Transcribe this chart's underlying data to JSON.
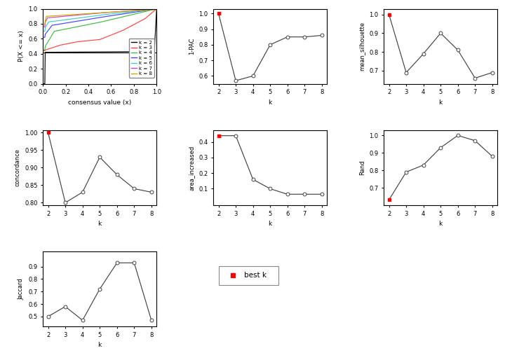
{
  "k_values": [
    2,
    3,
    4,
    5,
    6,
    7,
    8
  ],
  "pac_values": [
    1.0,
    0.57,
    0.6,
    0.8,
    0.85,
    0.85,
    0.86
  ],
  "mean_silhouette_values": [
    1.0,
    0.69,
    0.79,
    0.9,
    0.81,
    0.66,
    0.69
  ],
  "concordance_values": [
    1.0,
    0.8,
    0.83,
    0.93,
    0.88,
    0.84,
    0.83
  ],
  "area_increased_values": [
    0.44,
    0.44,
    0.16,
    0.1,
    0.065,
    0.065,
    0.065
  ],
  "rand_values": [
    0.63,
    0.79,
    0.83,
    0.93,
    1.0,
    0.97,
    0.88
  ],
  "jaccard_values": [
    0.5,
    0.58,
    0.47,
    0.72,
    0.93,
    0.93,
    0.47
  ],
  "best_k_index": 0,
  "rand_best_k_index": 0,
  "ecdf_colors": [
    "#000000",
    "#FF4444",
    "#44BB44",
    "#4444FF",
    "#44CCCC",
    "#CC44CC",
    "#CCAA00"
  ],
  "ecdf_labels": [
    "k = 2",
    "k = 3",
    "k = 4",
    "k = 5",
    "k = 6",
    "k = 7",
    "k = 8"
  ],
  "line_color": "#444444",
  "open_dot_mec": "#444444",
  "best_dot_color": "#FF0000",
  "bg_color": "#FFFFFF"
}
